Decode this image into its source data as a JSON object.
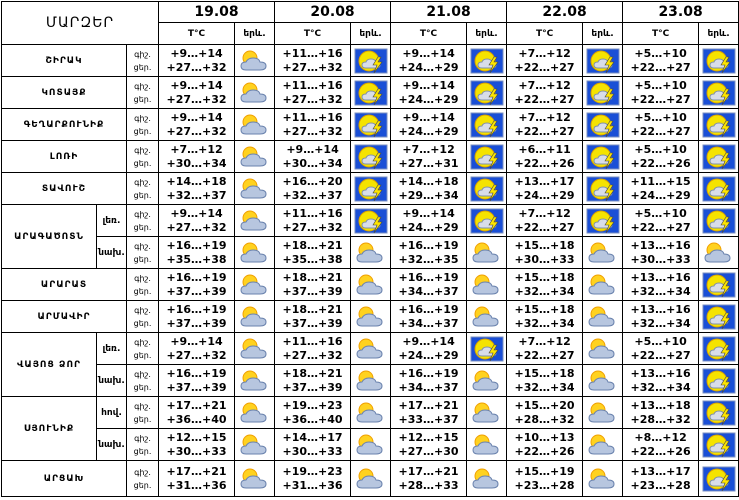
{
  "header": {
    "region_label": "ՄԱՐԶԵՐ",
    "temp_label": "T°C",
    "weather_label": "երև.",
    "dates": [
      "19.08",
      "20.08",
      "21.08",
      "22.08",
      "23.08"
    ]
  },
  "night_label": "գիշ.",
  "day_label": "ցեր.",
  "regions": [
    {
      "name": "ՇԻՐԱԿ",
      "days": [
        {
          "night": "+9…+14",
          "day": "+27…+32",
          "icon": "partly"
        },
        {
          "night": "+11…+16",
          "day": "+27…+32",
          "icon": "storm"
        },
        {
          "night": "+9…+14",
          "day": "+24…+29",
          "icon": "storm"
        },
        {
          "night": "+7…+12",
          "day": "+22…+27",
          "icon": "storm"
        },
        {
          "night": "+5…+10",
          "day": "+22…+27",
          "icon": "storm"
        }
      ]
    },
    {
      "name": "ԿՈՏԱՅՔ",
      "days": [
        {
          "night": "+9…+14",
          "day": "+27…+32",
          "icon": "partly"
        },
        {
          "night": "+11…+16",
          "day": "+27…+32",
          "icon": "storm"
        },
        {
          "night": "+9…+14",
          "day": "+24…+29",
          "icon": "storm"
        },
        {
          "night": "+7…+12",
          "day": "+22…+27",
          "icon": "storm"
        },
        {
          "night": "+5…+10",
          "day": "+22…+27",
          "icon": "storm"
        }
      ]
    },
    {
      "name": "ԳԵՂԱՐՔՈՒՆԻՔ",
      "days": [
        {
          "night": "+9…+14",
          "day": "+27…+32",
          "icon": "partly"
        },
        {
          "night": "+11…+16",
          "day": "+27…+32",
          "icon": "storm"
        },
        {
          "night": "+9…+14",
          "day": "+24…+29",
          "icon": "storm"
        },
        {
          "night": "+7…+12",
          "day": "+22…+27",
          "icon": "storm"
        },
        {
          "night": "+5…+10",
          "day": "+22…+27",
          "icon": "storm"
        }
      ]
    },
    {
      "name": "ԼՈՌԻ",
      "days": [
        {
          "night": "+7…+12",
          "day": "+30…+34",
          "icon": "partly"
        },
        {
          "night": "+9…+14",
          "day": "+30…+34",
          "icon": "storm"
        },
        {
          "night": "+7…+12",
          "day": "+27…+31",
          "icon": "storm"
        },
        {
          "night": "+6…+11",
          "day": "+22…+26",
          "icon": "storm"
        },
        {
          "night": "+5…+10",
          "day": "+22…+26",
          "icon": "storm"
        }
      ]
    },
    {
      "name": "ՏԱՎՈՒՇ",
      "days": [
        {
          "night": "+14…+18",
          "day": "+32…+37",
          "icon": "partly"
        },
        {
          "night": "+16…+20",
          "day": "+32…+37",
          "icon": "storm"
        },
        {
          "night": "+14…+18",
          "day": "+29…+34",
          "icon": "storm"
        },
        {
          "night": "+13…+17",
          "day": "+24…+29",
          "icon": "storm"
        },
        {
          "night": "+11…+15",
          "day": "+24…+29",
          "icon": "storm"
        }
      ]
    },
    {
      "name": "ԱՐԱԳԱԾՈՏՆ",
      "zones": [
        {
          "label": "լեռ.",
          "days": [
            {
              "night": "+9…+14",
              "day": "+27…+32",
              "icon": "partly"
            },
            {
              "night": "+11…+16",
              "day": "+27…+32",
              "icon": "storm"
            },
            {
              "night": "+9…+14",
              "day": "+24…+29",
              "icon": "storm"
            },
            {
              "night": "+7…+12",
              "day": "+22…+27",
              "icon": "storm"
            },
            {
              "night": "+5…+10",
              "day": "+22…+27",
              "icon": "storm"
            }
          ]
        },
        {
          "label": "նախ.",
          "days": [
            {
              "night": "+16…+19",
              "day": "+35…+38",
              "icon": "partly"
            },
            {
              "night": "+18…+21",
              "day": "+35…+38",
              "icon": "partly"
            },
            {
              "night": "+16…+19",
              "day": "+32…+35",
              "icon": "partly"
            },
            {
              "night": "+15…+18",
              "day": "+30…+33",
              "icon": "partly"
            },
            {
              "night": "+13…+16",
              "day": "+30…+33",
              "icon": "partly"
            }
          ]
        }
      ]
    },
    {
      "name": "ԱՐԱՐԱՏ",
      "days": [
        {
          "night": "+16…+19",
          "day": "+37…+39",
          "icon": "partly"
        },
        {
          "night": "+18…+21",
          "day": "+37…+39",
          "icon": "partly"
        },
        {
          "night": "+16…+19",
          "day": "+34…+37",
          "icon": "partly"
        },
        {
          "night": "+15…+18",
          "day": "+32…+34",
          "icon": "partly"
        },
        {
          "night": "+13…+16",
          "day": "+32…+34",
          "icon": "storm"
        }
      ]
    },
    {
      "name": "ԱՐՄԱՎԻՐ",
      "days": [
        {
          "night": "+16…+19",
          "day": "+37…+39",
          "icon": "partly"
        },
        {
          "night": "+18…+21",
          "day": "+37…+39",
          "icon": "partly"
        },
        {
          "night": "+16…+19",
          "day": "+34…+37",
          "icon": "partly"
        },
        {
          "night": "+15…+18",
          "day": "+32…+34",
          "icon": "partly"
        },
        {
          "night": "+13…+16",
          "day": "+32…+34",
          "icon": "storm"
        }
      ]
    },
    {
      "name": "ՎԱՅՈՑ ՁՈՐ",
      "zones": [
        {
          "label": "լեռ.",
          "days": [
            {
              "night": "+9…+14",
              "day": "+27…+32",
              "icon": "partly"
            },
            {
              "night": "+11…+16",
              "day": "+27…+32",
              "icon": "partly"
            },
            {
              "night": "+9…+14",
              "day": "+24…+29",
              "icon": "storm"
            },
            {
              "night": "+7…+12",
              "day": "+22…+27",
              "icon": "partly"
            },
            {
              "night": "+5…+10",
              "day": "+22…+27",
              "icon": "storm"
            }
          ]
        },
        {
          "label": "նախ.",
          "days": [
            {
              "night": "+16…+19",
              "day": "+37…+39",
              "icon": "partly"
            },
            {
              "night": "+18…+21",
              "day": "+37…+39",
              "icon": "partly"
            },
            {
              "night": "+16…+19",
              "day": "+34…+37",
              "icon": "partly"
            },
            {
              "night": "+15…+18",
              "day": "+32…+34",
              "icon": "partly"
            },
            {
              "night": "+13…+16",
              "day": "+32…+34",
              "icon": "storm"
            }
          ]
        }
      ]
    },
    {
      "name": "ՍՅՈՒՆԻՔ",
      "zones": [
        {
          "label": "հով.",
          "days": [
            {
              "night": "+17…+21",
              "day": "+36…+40",
              "icon": "partly"
            },
            {
              "night": "+19…+23",
              "day": "+36…+40",
              "icon": "partly"
            },
            {
              "night": "+17…+21",
              "day": "+33…+37",
              "icon": "partly"
            },
            {
              "night": "+15…+20",
              "day": "+28…+32",
              "icon": "partly"
            },
            {
              "night": "+13…+18",
              "day": "+28…+32",
              "icon": "storm"
            }
          ]
        },
        {
          "label": "նախ.",
          "days": [
            {
              "night": "+12…+15",
              "day": "+30…+33",
              "icon": "partly"
            },
            {
              "night": "+14…+17",
              "day": "+30…+33",
              "icon": "partly"
            },
            {
              "night": "+12…+15",
              "day": "+27…+30",
              "icon": "partly"
            },
            {
              "night": "+10…+13",
              "day": "+22…+26",
              "icon": "partly"
            },
            {
              "night": "+8…+12",
              "day": "+22…+26",
              "icon": "storm"
            }
          ]
        }
      ]
    },
    {
      "name": "ԱՐՑԱԽ",
      "days": [
        {
          "night": "+17…+21",
          "day": "+31…+36",
          "icon": "partly"
        },
        {
          "night": "+19…+23",
          "day": "+31…+36",
          "icon": "partly"
        },
        {
          "night": "+17…+21",
          "day": "+28…+33",
          "icon": "partly"
        },
        {
          "night": "+15…+19",
          "day": "+23…+28",
          "icon": "partly"
        },
        {
          "night": "+13…+17",
          "day": "+23…+28",
          "icon": "storm"
        }
      ]
    }
  ]
}
